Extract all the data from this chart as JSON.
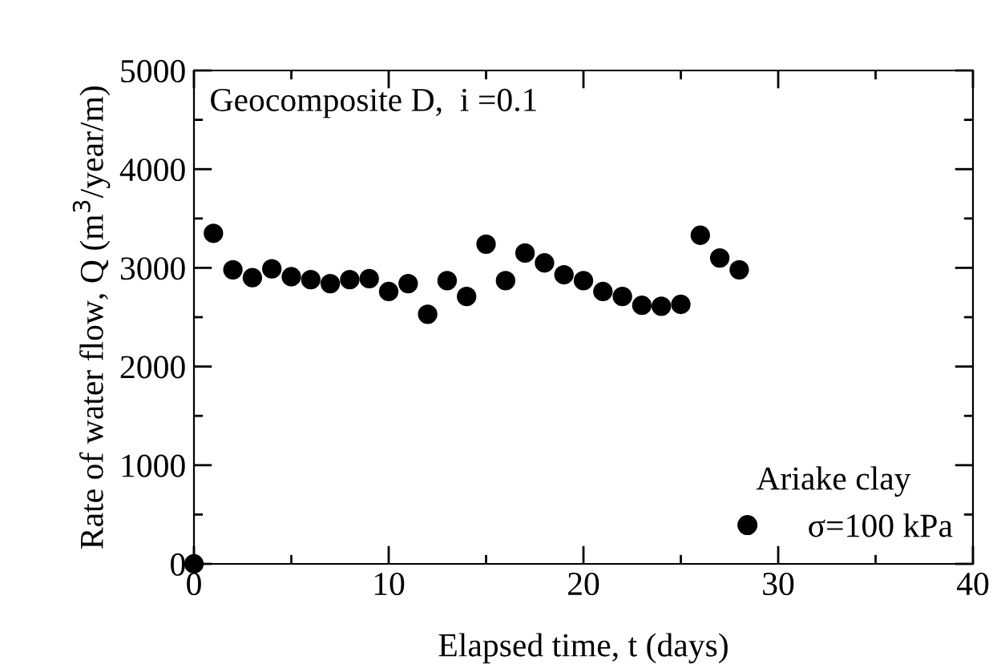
{
  "chart_data": {
    "type": "scatter",
    "title": "Geocomposite D,  i =0.1",
    "xlabel": "Elapsed time, t (days)",
    "ylabel": "Rate of water flow, Q (m$^{3}$/year/m)",
    "legend_title": "Ariake clay",
    "legend": "bottom right",
    "marker": "circle",
    "grid": false,
    "xlim": [
      0,
      40
    ],
    "ylim": [
      0,
      5000
    ],
    "xticks": [
      0,
      {
        "value": 5,
        "label": null
      },
      10,
      {
        "value": 15,
        "label": null
      },
      20,
      {
        "value": 25,
        "label": null
      },
      30,
      {
        "value": 35,
        "label": null
      },
      40
    ],
    "yticks": [
      0,
      {
        "value": 500,
        "label": null
      },
      1000,
      {
        "value": 1500,
        "label": null
      },
      2000,
      {
        "value": 2500,
        "label": null
      },
      3000,
      {
        "value": 3500,
        "label": null
      },
      4000,
      {
        "value": 4500,
        "label": null
      },
      5000
    ],
    "series": [
      {
        "name": "σ=100 kPa",
        "color": "#000000",
        "x": [
          0,
          1,
          2,
          3,
          4,
          5,
          6,
          7,
          8,
          9,
          10,
          11,
          12,
          13,
          14,
          15,
          16,
          17,
          18,
          19,
          20,
          21,
          22,
          23,
          24,
          25,
          26,
          27,
          28
        ],
        "values": [
          0,
          3350,
          2980,
          2900,
          2990,
          2910,
          2880,
          2840,
          2880,
          2890,
          2760,
          2840,
          2530,
          2870,
          2710,
          3240,
          2870,
          3150,
          3050,
          2930,
          2870,
          2760,
          2710,
          2620,
          2610,
          2630,
          3330,
          3100,
          2980
        ]
      }
    ]
  }
}
